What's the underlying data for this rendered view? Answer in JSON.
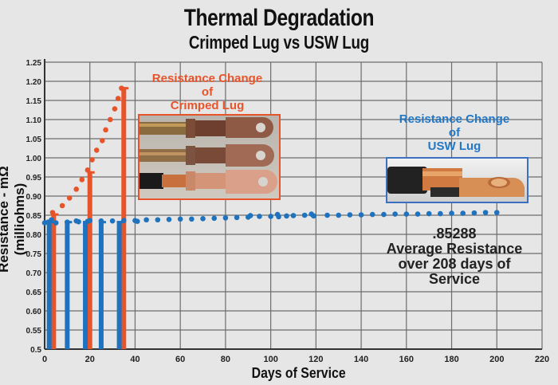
{
  "header": {
    "title": "Thermal Degradation",
    "subtitle": "Crimped Lug vs USW Lug"
  },
  "axes": {
    "xlabel": "Days of Service",
    "ylabel": "Resistance - mΩ (milliohms)",
    "x_ticks": [
      0,
      20,
      40,
      60,
      80,
      100,
      120,
      140,
      160,
      180,
      200,
      220
    ],
    "y_ticks": [
      "0.5",
      "0.55",
      "0.60",
      "0.65",
      "0.70",
      "0.75",
      "0.80",
      "0.85",
      "0.90",
      "0.95",
      "1.00",
      "1.05",
      "1.10",
      "1.15",
      "1.20",
      "1.25"
    ]
  },
  "callouts": {
    "crimped": {
      "line1": "Resistance Change",
      "line2": "of",
      "line3": "Crimped Lug"
    },
    "usw": {
      "line1": "Resistance Change",
      "line2": "of",
      "line3": "USW Lug"
    },
    "average": {
      "value": ".85288",
      "line1": "Average Resistance",
      "line2": "over 208 days of",
      "line3": "Service"
    }
  },
  "colors": {
    "crimped": "#e8542a",
    "usw": "#1f72bd",
    "grid": "#6d6d6d",
    "background": "#e6e6e6"
  },
  "chart_data": {
    "type": "scatter",
    "title": "Thermal Degradation",
    "subtitle": "Crimped Lug vs USW Lug",
    "xlabel": "Days of Service",
    "ylabel": "Resistance - mΩ (milliohms)",
    "xlim": [
      0,
      220
    ],
    "ylim": [
      0.5,
      1.25
    ],
    "grid": true,
    "series": [
      {
        "name": "Crimped Lug (dots)",
        "color": "#e8542a",
        "kind": "scatter",
        "x": [
          3.5,
          7.8,
          11,
          14,
          16.5,
          19,
          21,
          23,
          25.5,
          27,
          29,
          31,
          32.5,
          34
        ],
        "y": [
          0.857,
          0.875,
          0.895,
          0.918,
          0.943,
          0.968,
          0.995,
          1.02,
          1.045,
          1.073,
          1.1,
          1.128,
          1.155,
          1.182
        ]
      },
      {
        "name": "Crimped Lug (bars)",
        "color": "#e8542a",
        "kind": "bar",
        "x": [
          4,
          20,
          35
        ],
        "y": [
          0.855,
          0.965,
          1.185
        ]
      },
      {
        "name": "USW Lug (dots)",
        "color": "#1f72bd",
        "kind": "scatter",
        "x": [
          0,
          1.5,
          3,
          5,
          10,
          14,
          15,
          19,
          20,
          25,
          30,
          35,
          40,
          41,
          45,
          50,
          55,
          60,
          65,
          70,
          75,
          80,
          85,
          90,
          91,
          95,
          100,
          103,
          103.5,
          107,
          110,
          115,
          118,
          119,
          125,
          130,
          135,
          140,
          145,
          150,
          155,
          160,
          165,
          170,
          175,
          180,
          185,
          190,
          195,
          200
        ],
        "y": [
          0.83,
          0.832,
          0.838,
          0.83,
          0.832,
          0.835,
          0.833,
          0.834,
          0.836,
          0.835,
          0.835,
          0.836,
          0.836,
          0.834,
          0.838,
          0.838,
          0.839,
          0.84,
          0.84,
          0.841,
          0.842,
          0.843,
          0.844,
          0.845,
          0.849,
          0.847,
          0.847,
          0.852,
          0.846,
          0.848,
          0.849,
          0.85,
          0.853,
          0.848,
          0.85,
          0.85,
          0.851,
          0.851,
          0.852,
          0.852,
          0.853,
          0.853,
          0.853,
          0.854,
          0.854,
          0.855,
          0.855,
          0.856,
          0.857,
          0.857
        ]
      },
      {
        "name": "USW Lug (bars)",
        "color": "#1f72bd",
        "kind": "bar",
        "x": [
          2,
          10,
          18,
          25,
          33
        ],
        "y": [
          0.835,
          0.835,
          0.835,
          0.835,
          0.835
        ]
      }
    ],
    "annotations": [
      "Resistance Change of Crimped Lug",
      "Resistance Change of USW Lug",
      ".85288 Average Resistance over 208 days of Service"
    ]
  }
}
